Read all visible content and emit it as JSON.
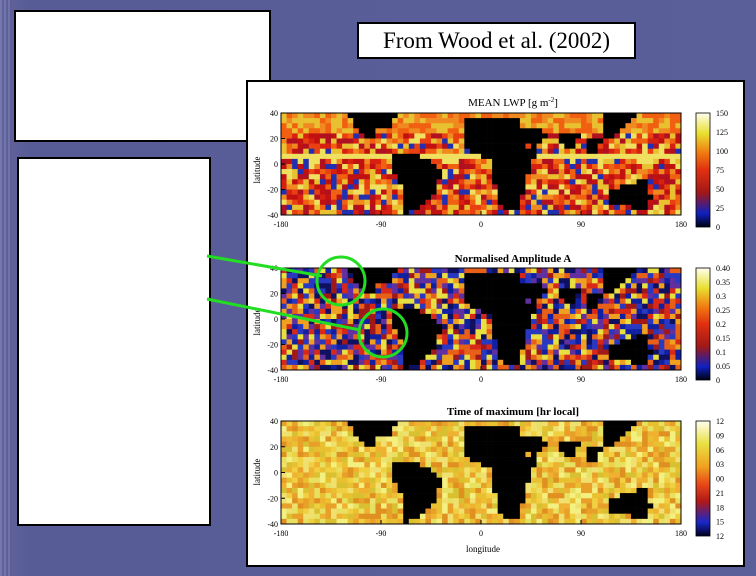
{
  "citation": "From Wood et al. (2002)",
  "colors": {
    "background": "#5b5f99",
    "highlight": "#22dd22",
    "land": "#000000"
  },
  "chart_data": [
    {
      "type": "heatmap",
      "title_main": "MEAN LWP [g m",
      "title_sup": "-2",
      "title_end": "]",
      "ylabel": "latitude",
      "xticks": [
        "-180",
        "-90",
        "0",
        "90",
        "180"
      ],
      "yticks": [
        "40",
        "20",
        "0",
        "-20",
        "-40"
      ],
      "xlim": [
        -180,
        180
      ],
      "ylim": [
        -40,
        40
      ],
      "colorbar": [
        "150",
        "125",
        "100",
        "75",
        "50",
        "25",
        "0"
      ],
      "colorbar_range": [
        0,
        150
      ]
    },
    {
      "type": "heatmap",
      "title": "Normalised Amplitude A",
      "ylabel": "latitude",
      "xticks": [
        "-180",
        "-90",
        "0",
        "90",
        "180"
      ],
      "yticks": [
        "40",
        "20",
        "0",
        "-20",
        "-40"
      ],
      "xlim": [
        -180,
        180
      ],
      "ylim": [
        -40,
        40
      ],
      "colorbar": [
        "0.40",
        "0.35",
        "0.3",
        "0.25",
        "0.2",
        "0.15",
        "0.1",
        "0.05",
        "0"
      ],
      "colorbar_range": [
        0,
        0.4
      ]
    },
    {
      "type": "heatmap",
      "title": "Time of maximum [hr local]",
      "ylabel": "latitude",
      "xlabel": "longitude",
      "xticks": [
        "-180",
        "-90",
        "0",
        "90",
        "180"
      ],
      "yticks": [
        "40",
        "20",
        "0",
        "-20",
        "-40"
      ],
      "xlim": [
        -180,
        180
      ],
      "ylim": [
        -40,
        40
      ],
      "colorbar": [
        "12",
        "09",
        "06",
        "03",
        "00",
        "21",
        "18",
        "15",
        "12"
      ]
    }
  ]
}
